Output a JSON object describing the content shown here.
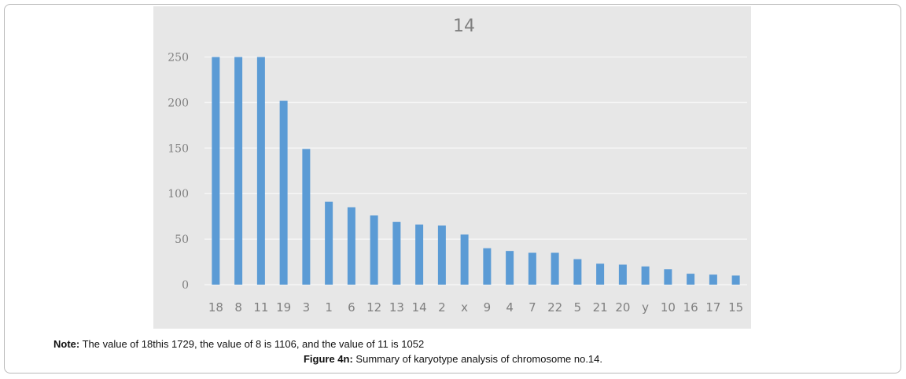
{
  "chart_data": {
    "type": "bar",
    "title": "14",
    "xlabel": "",
    "ylabel": "",
    "ylim": [
      0,
      250
    ],
    "yticks": [
      0,
      50,
      100,
      150,
      200,
      250
    ],
    "grid": true,
    "legend": "none",
    "categories": [
      "18",
      "8",
      "11",
      "19",
      "3",
      "1",
      "6",
      "12",
      "13",
      "14",
      "2",
      "x",
      "9",
      "4",
      "7",
      "22",
      "5",
      "21",
      "20",
      "y",
      "10",
      "16",
      "17",
      "15"
    ],
    "values": [
      250,
      250,
      250,
      202,
      149,
      91,
      85,
      76,
      69,
      66,
      65,
      55,
      40,
      37,
      35,
      35,
      28,
      23,
      22,
      20,
      17,
      12,
      11,
      10
    ],
    "bar_color": "#5b9bd5"
  },
  "note": {
    "label": "Note:",
    "text": " The value of 18this 1729, the value of 8 is 1106, and the value of 11 is 1052"
  },
  "caption": {
    "label": "Figure 4n:",
    "text": " Summary of karyotype analysis of chromosome no.14."
  }
}
